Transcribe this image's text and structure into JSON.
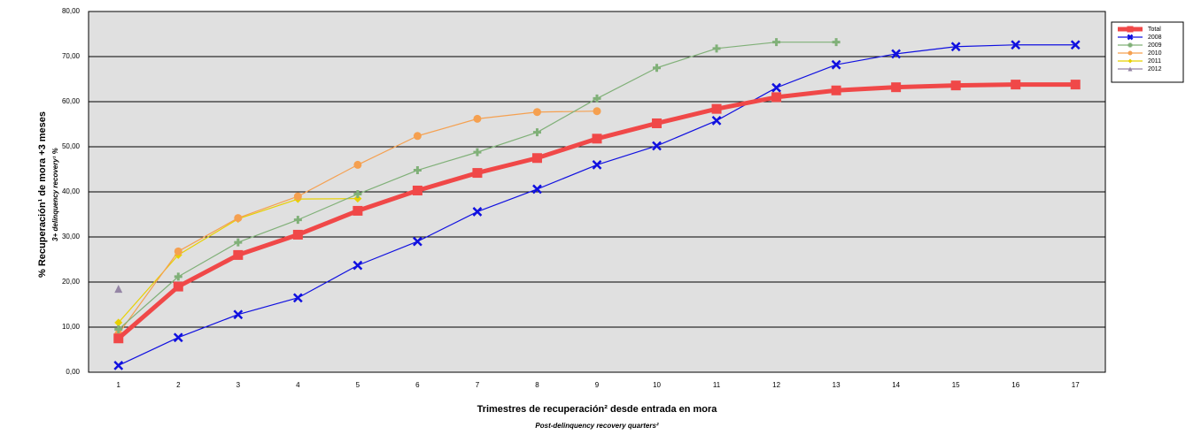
{
  "chart_data": {
    "type": "line",
    "y_label": "% Recuperación¹ de mora +3 meses",
    "y_sublabel": "3+ delinquency recovery¹ %",
    "x_label": "Trimestres de recuperación² desde entrada en mora",
    "x_sublabel": "Post-delinquency recovery quarters²",
    "categories": [
      "1",
      "2",
      "3",
      "4",
      "5",
      "6",
      "7",
      "8",
      "9",
      "10",
      "11",
      "12",
      "13",
      "14",
      "15",
      "16",
      "17"
    ],
    "ylim": [
      0,
      80
    ],
    "yticks": [
      {
        "value": 0,
        "label": "0,00"
      },
      {
        "value": 10,
        "label": "10,00"
      },
      {
        "value": 20,
        "label": "20,00"
      },
      {
        "value": 30,
        "label": "30,00"
      },
      {
        "value": 40,
        "label": "40,00"
      },
      {
        "value": 50,
        "label": "50,00"
      },
      {
        "value": 60,
        "label": "60,00"
      },
      {
        "value": 70,
        "label": "70,00"
      },
      {
        "value": 80,
        "label": "80,00"
      }
    ],
    "grid": true,
    "legend": "right",
    "series": [
      {
        "name": "Total",
        "color": "#f04848",
        "marker": "square",
        "values": [
          7.5,
          19,
          26,
          30.5,
          35.8,
          40.3,
          44.2,
          47.5,
          51.8,
          55.2,
          58.4,
          61,
          62.5,
          63.2,
          63.6,
          63.8,
          63.8
        ]
      },
      {
        "name": "2008",
        "color": "#1010e0",
        "marker": "x",
        "values": [
          1.5,
          7.7,
          12.8,
          16.5,
          23.7,
          29,
          35.6,
          40.6,
          46,
          50.2,
          55.8,
          63.1,
          68.2,
          70.6,
          72.2,
          72.6,
          72.6
        ]
      },
      {
        "name": "2009",
        "color": "#80b078",
        "marker": "plus",
        "values": [
          9.5,
          21.2,
          28.8,
          33.8,
          39.5,
          44.8,
          48.8,
          53.2,
          60.7,
          67.5,
          71.8,
          73.2,
          73.2,
          null,
          null,
          null,
          null
        ]
      },
      {
        "name": "2010",
        "color": "#f5a050",
        "marker": "circle",
        "values": [
          8.5,
          26.8,
          34.2,
          39,
          46,
          52.4,
          56.2,
          57.7,
          57.9,
          null,
          null,
          null,
          null,
          null,
          null,
          null,
          null
        ]
      },
      {
        "name": "2011",
        "color": "#e8d000",
        "marker": "diamond",
        "values": [
          11,
          26,
          34,
          38.4,
          38.5,
          null,
          null,
          null,
          null,
          null,
          null,
          null,
          null,
          null,
          null,
          null,
          null
        ]
      },
      {
        "name": "2012",
        "color": "#9585a5",
        "marker": "triangle",
        "values": [
          18.5,
          null,
          null,
          null,
          null,
          null,
          null,
          null,
          null,
          null,
          null,
          null,
          null,
          null,
          null,
          null,
          null
        ]
      }
    ]
  }
}
